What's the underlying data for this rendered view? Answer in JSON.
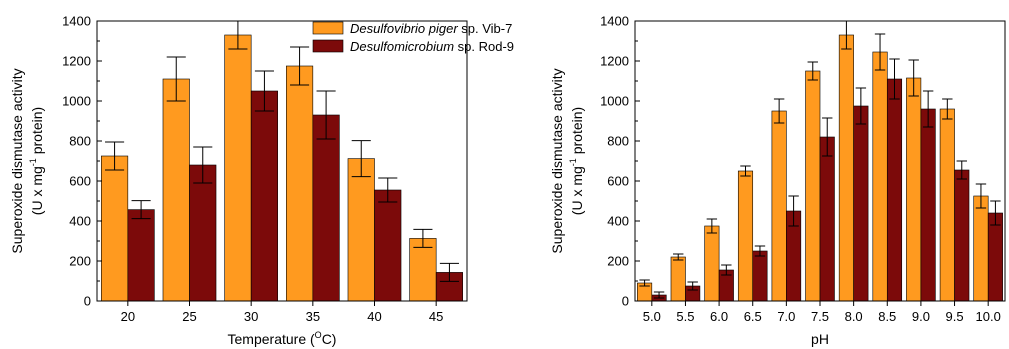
{
  "colors": {
    "series1": "#ff9a1f",
    "series2": "#7c0a0a"
  },
  "chart_data": [
    {
      "type": "bar",
      "xlabel_main": "Temperature (",
      "xlabel_sup": "O",
      "xlabel_end": "C)",
      "ylabel_line1": "Superoxide dismutase activity",
      "ylabel_line2_a": "(U x mg",
      "ylabel_line2_sup": "-1",
      "ylabel_line2_b": " protein)",
      "ylim": [
        0,
        1400
      ],
      "yticks": [
        "0",
        "200",
        "400",
        "600",
        "800",
        "1000",
        "1200",
        "1400"
      ],
      "categories": [
        "20",
        "25",
        "30",
        "35",
        "40",
        "45"
      ],
      "legend_position": "top-right",
      "series": [
        {
          "name_italic": "Desulfovibrio piger",
          "name_rest": " sp. Vib-7",
          "values": [
            725,
            1110,
            1330,
            1175,
            712,
            313
          ],
          "errors": [
            70,
            110,
            70,
            95,
            90,
            45
          ]
        },
        {
          "name_italic": "Desulfomicrobium",
          "name_rest": " sp. Rod-9",
          "values": [
            457,
            680,
            1050,
            930,
            555,
            143
          ],
          "errors": [
            45,
            90,
            100,
            120,
            60,
            45
          ]
        }
      ]
    },
    {
      "type": "bar",
      "xlabel": "pH",
      "ylabel_line1": "Superoxide dismutase activity",
      "ylabel_line2_a": "(U x mg",
      "ylabel_line2_sup": "-1",
      "ylabel_line2_b": " protein)",
      "ylim": [
        0,
        1400
      ],
      "yticks": [
        "0",
        "200",
        "400",
        "600",
        "800",
        "1000",
        "1200",
        "1400"
      ],
      "categories": [
        "5.0",
        "5.5",
        "6.0",
        "6.5",
        "7.0",
        "7.5",
        "8.0",
        "8.5",
        "9.0",
        "9.5",
        "10.0"
      ],
      "series": [
        {
          "values": [
            90,
            220,
            375,
            650,
            950,
            1150,
            1330,
            1245,
            1115,
            960,
            525
          ],
          "errors": [
            15,
            15,
            35,
            25,
            60,
            45,
            70,
            90,
            90,
            50,
            60
          ]
        },
        {
          "values": [
            30,
            75,
            155,
            250,
            450,
            820,
            975,
            1110,
            960,
            655,
            440
          ],
          "errors": [
            15,
            20,
            25,
            25,
            75,
            95,
            90,
            100,
            90,
            45,
            60
          ]
        }
      ]
    }
  ]
}
